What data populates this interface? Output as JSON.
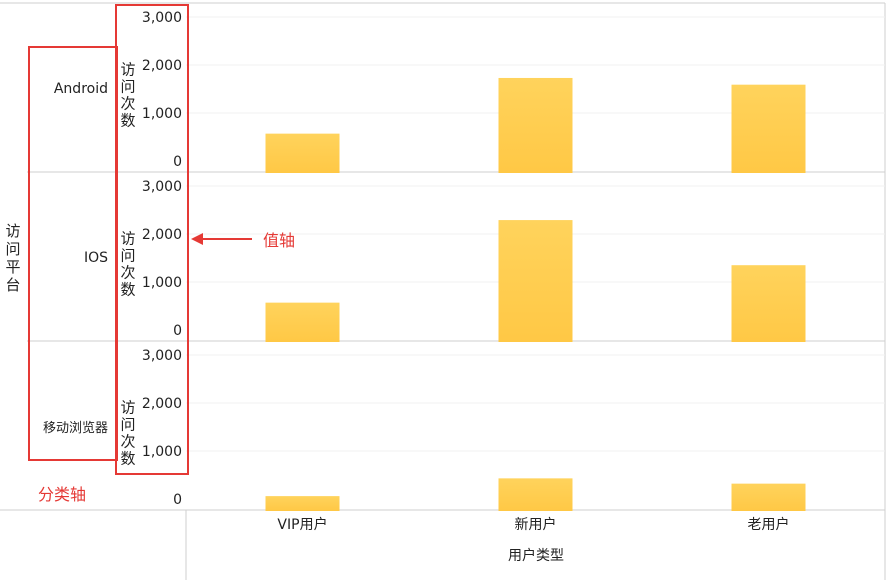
{
  "chart_data": {
    "type": "bar",
    "layout": "faceted-rows",
    "categories": [
      "VIP用户",
      "新用户",
      "老用户"
    ],
    "xlabel": "用户类型",
    "ylabel": "访问次数",
    "facet_label": "访问平台",
    "ylim": [
      0,
      3000
    ],
    "yticks": [
      "3,000",
      "2,000",
      "1,000",
      "0"
    ],
    "ytick_values": [
      3000,
      2000,
      1000,
      0
    ],
    "grid": true,
    "bar_color": "#ffc845",
    "bar_color_top": "#ffd35c",
    "rows": [
      {
        "name": "Android",
        "values": [
          570,
          1730,
          1590
        ]
      },
      {
        "name": "IOS",
        "values": [
          570,
          2290,
          1350
        ]
      },
      {
        "name": "移动浏览器",
        "values": [
          60,
          430,
          320
        ]
      }
    ],
    "annotations": {
      "value_axis": "值轴",
      "category_axis": "分类轴",
      "color": "#e53935"
    }
  }
}
